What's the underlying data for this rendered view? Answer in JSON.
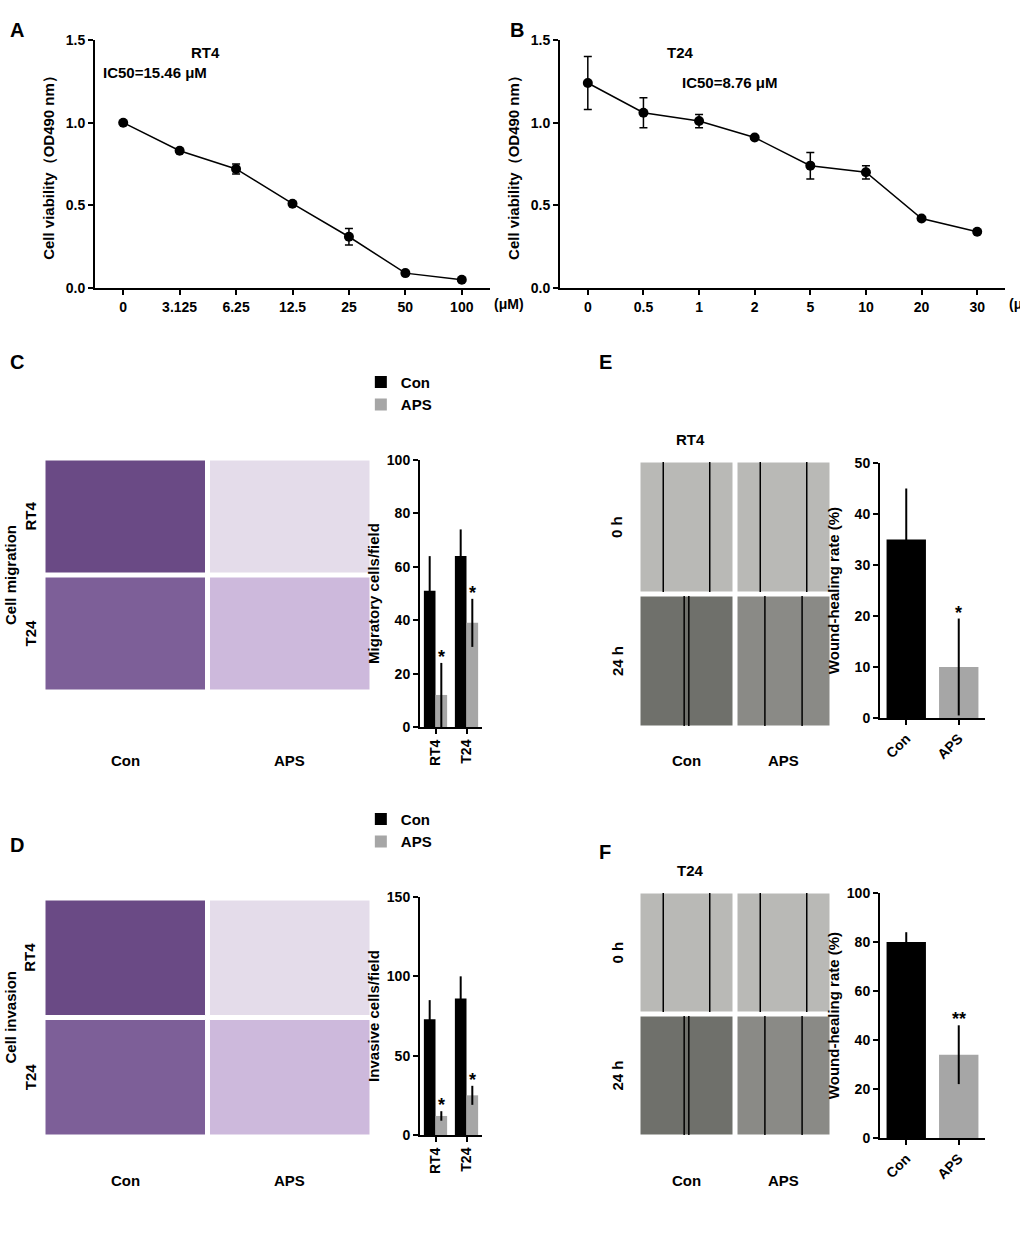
{
  "chart_data": [
    {
      "panel": "A",
      "type": "line",
      "title": "RT4",
      "annotations": [
        {
          "text": "IC50=15.46 μM"
        }
      ],
      "x_label": "(μM)",
      "y_label": "Cell viability（OD490 nm）",
      "categories": [
        "0",
        "3.125",
        "6.25",
        "12.5",
        "25",
        "50",
        "100"
      ],
      "values": [
        1.0,
        0.83,
        0.72,
        0.51,
        0.31,
        0.09,
        0.05
      ],
      "errors": [
        0.005,
        0.005,
        0.03,
        0.01,
        0.05,
        0.01,
        0.005
      ],
      "color": "#000000",
      "marker": "circle",
      "ylim": [
        0,
        1.5
      ],
      "yticks": [
        {
          "value": 0,
          "label": "0.0"
        },
        0.5,
        {
          "value": 1,
          "label": "1.0"
        },
        1.5
      ]
    },
    {
      "panel": "B",
      "type": "line",
      "title": "T24",
      "annotations": [
        {
          "text": "IC50=8.76 μM"
        }
      ],
      "x_label": "(μM)",
      "y_label": "Cell viability（OD490 nm）",
      "categories": [
        "0",
        "0.5",
        "1",
        "2",
        "5",
        "10",
        "20",
        "30"
      ],
      "values": [
        1.24,
        1.06,
        1.01,
        0.91,
        0.74,
        0.7,
        0.42,
        0.34
      ],
      "errors": [
        0.16,
        0.09,
        0.04,
        0.01,
        0.08,
        0.04,
        0.01,
        0.01
      ],
      "color": "#000000",
      "marker": "circle",
      "ylim": [
        0,
        1.5
      ],
      "yticks": [
        {
          "value": 0,
          "label": "0.0"
        },
        0.5,
        {
          "value": 1,
          "label": "1.0"
        },
        1.5
      ]
    },
    {
      "panel": "C",
      "type": "bar",
      "y_label": "Migratory cells/field",
      "categories": [
        "RT4",
        "T24"
      ],
      "series": [
        {
          "name": "Con",
          "color": "#000000",
          "values": [
            51,
            64
          ],
          "errors": [
            13,
            10
          ]
        },
        {
          "name": "APS",
          "color": "#a6a6a6",
          "values": [
            12,
            39
          ],
          "errors": [
            12,
            9
          ]
        }
      ],
      "legend": "top",
      "ylim": [
        0,
        100
      ],
      "yticks": [
        0,
        20,
        40,
        60,
        80,
        100
      ],
      "annotations": [
        {
          "text": "*",
          "x": "RT4",
          "series": "APS"
        },
        {
          "text": "*",
          "x": "T24",
          "series": "APS"
        }
      ]
    },
    {
      "panel": "D",
      "type": "bar",
      "y_label": "Invasive cells/field",
      "categories": [
        "RT4",
        "T24"
      ],
      "series": [
        {
          "name": "Con",
          "color": "#000000",
          "values": [
            73,
            86
          ],
          "errors": [
            12,
            14
          ]
        },
        {
          "name": "APS",
          "color": "#a6a6a6",
          "values": [
            12,
            25
          ],
          "errors": [
            3,
            6
          ]
        }
      ],
      "legend": "top",
      "ylim": [
        0,
        150
      ],
      "yticks": [
        0,
        50,
        100,
        150
      ],
      "annotations": [
        {
          "text": "*",
          "x": "RT4",
          "series": "APS"
        },
        {
          "text": "*",
          "x": "T24",
          "series": "APS"
        }
      ]
    },
    {
      "panel": "E",
      "type": "bar",
      "y_label": "Wound-healing rate (%)",
      "categories": [
        "Con",
        "APS"
      ],
      "values": [
        35,
        10
      ],
      "errors": [
        10,
        9.5
      ],
      "colors": [
        "#000000",
        "#a6a6a6"
      ],
      "ylim": [
        0,
        50
      ],
      "yticks": [
        0,
        10,
        20,
        30,
        40,
        50
      ],
      "annotations": [
        {
          "text": "*",
          "x": "APS"
        }
      ]
    },
    {
      "panel": "F",
      "type": "bar",
      "y_label": "Wound-healing rate (%)",
      "categories": [
        "Con",
        "APS"
      ],
      "values": [
        80,
        34
      ],
      "errors": [
        4,
        12
      ],
      "colors": [
        "#000000",
        "#a6a6a6"
      ],
      "ylim": [
        0,
        100
      ],
      "yticks": [
        0,
        20,
        40,
        60,
        80,
        100
      ],
      "annotations": [
        {
          "text": "**",
          "x": "APS"
        }
      ]
    }
  ],
  "images": [
    {
      "side_label": "Cell migration",
      "rows": [
        "RT4",
        "T24"
      ],
      "columns": [
        "Con",
        "APS"
      ]
    },
    {
      "side_label": "Cell invasion",
      "rows": [
        "RT4",
        "T24"
      ],
      "columns": [
        "Con",
        "APS"
      ]
    },
    {
      "title": "RT4",
      "rows": [
        "0 h",
        "24 h"
      ],
      "columns": [
        "Con",
        "APS"
      ]
    },
    {
      "title": "T24",
      "rows": [
        "0 h",
        "24 h"
      ],
      "columns": [
        "Con",
        "APS"
      ]
    }
  ]
}
